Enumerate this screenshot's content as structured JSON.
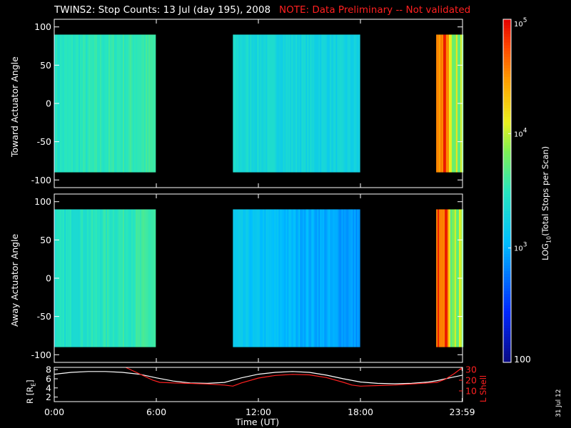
{
  "header": {
    "title": "TWINS2: Stop Counts: 13 Jul (day 195), 2008",
    "note": "NOTE: Data Preliminary -- Not validated"
  },
  "footer": {
    "stamp": "31 Jul 12"
  },
  "colors": {
    "background": "#000000",
    "note": "#ff2020",
    "r_line": "#ffffff",
    "lshell_line": "#ff2020"
  },
  "chart_data": [
    {
      "type": "heatmap",
      "panel": "toward",
      "ylabel": "Toward Actuator Angle",
      "yticks": [
        100,
        50,
        0,
        -50,
        -100
      ],
      "ylim": [
        -110,
        110
      ],
      "xlim": [
        0,
        24
      ],
      "data_ylim": [
        -90,
        90
      ],
      "segments": [
        {
          "start": 0.0,
          "end": 5.9,
          "log_counts": 3.45,
          "trend": 0.12
        },
        {
          "start": 10.5,
          "end": 17.9,
          "log_counts": 3.35,
          "trend": -0.1
        },
        {
          "start": 22.45,
          "end": 23.2,
          "log_counts": 4.5,
          "trend": 0.0
        },
        {
          "start": 23.2,
          "end": 24.0,
          "log_counts": 3.75,
          "trend": 0.0
        }
      ]
    },
    {
      "type": "heatmap",
      "panel": "away",
      "ylabel": "Away Actuator Angle",
      "yticks": [
        100,
        50,
        0,
        -50,
        -100
      ],
      "ylim": [
        -110,
        110
      ],
      "xlim": [
        0,
        24
      ],
      "data_ylim": [
        -90,
        90
      ],
      "segments": [
        {
          "start": 0.0,
          "end": 5.9,
          "log_counts": 3.4,
          "trend": 0.18
        },
        {
          "start": 10.5,
          "end": 17.9,
          "log_counts": 3.15,
          "trend": -0.25
        },
        {
          "start": 22.45,
          "end": 23.2,
          "log_counts": 4.5,
          "trend": 0.0
        },
        {
          "start": 23.2,
          "end": 24.0,
          "log_counts": 3.75,
          "trend": 0.0
        }
      ]
    },
    {
      "type": "colorbar",
      "label": "LOG10(Total Stops per Scan)",
      "label_parts": [
        "LOG",
        "10",
        "(Total Stops per Scan)"
      ],
      "scale": "log",
      "range": [
        2,
        5
      ],
      "ticks": [
        {
          "value": 5,
          "base": "10",
          "exp": "5"
        },
        {
          "value": 4,
          "base": "10",
          "exp": "4"
        },
        {
          "value": 3,
          "base": "10",
          "exp": "3"
        },
        {
          "value": 2,
          "label": "100"
        }
      ]
    },
    {
      "type": "line",
      "panel": "ephemeris",
      "xlabel": "Time (UT)",
      "xticks": [
        "0:00",
        "6:00",
        "12:00",
        "18:00",
        "23:59"
      ],
      "xtick_values": [
        0,
        6,
        12,
        18,
        23.98
      ],
      "xlim": [
        0,
        24
      ],
      "ylabel_left": "R [RE]",
      "ylabel_left_parts": [
        "R [R",
        "E",
        "]"
      ],
      "ylim_left": [
        1,
        8.5
      ],
      "yticks_left": [
        2,
        4,
        6,
        8
      ],
      "ylabel_right": "L Shell",
      "ylim_right": [
        0,
        32
      ],
      "yticks_right": [
        10,
        20,
        30
      ],
      "series": [
        {
          "axis": "left",
          "x": [
            0,
            1,
            2,
            3,
            4,
            5,
            6,
            7,
            8,
            9,
            10,
            11,
            12,
            13,
            14,
            15,
            16,
            17,
            18,
            19,
            20,
            21,
            22,
            22.5,
            23,
            23.5,
            24
          ],
          "y": [
            7.0,
            7.4,
            7.6,
            7.6,
            7.4,
            7.0,
            6.2,
            5.5,
            5.1,
            5.0,
            5.2,
            6.2,
            7.0,
            7.4,
            7.6,
            7.4,
            6.8,
            6.0,
            5.3,
            5.0,
            4.9,
            5.0,
            5.3,
            5.6,
            6.0,
            6.4,
            6.8
          ]
        },
        {
          "axis": "right",
          "x": [
            4.2,
            4.6,
            5.0,
            5.4,
            5.8,
            6.2,
            7,
            8,
            9,
            10,
            10.5,
            11,
            12,
            13,
            14,
            15,
            16,
            17,
            17.5,
            18,
            19,
            20,
            21,
            22,
            22.5,
            23,
            23.5,
            24
          ],
          "y": [
            32,
            29,
            26,
            23,
            20,
            18,
            17.5,
            17,
            16.5,
            15.5,
            14.5,
            17.5,
            22,
            24.5,
            25.5,
            25,
            22.5,
            18,
            15.5,
            14.5,
            15,
            15.5,
            16.5,
            17.5,
            18,
            21,
            26,
            32
          ]
        }
      ]
    }
  ]
}
